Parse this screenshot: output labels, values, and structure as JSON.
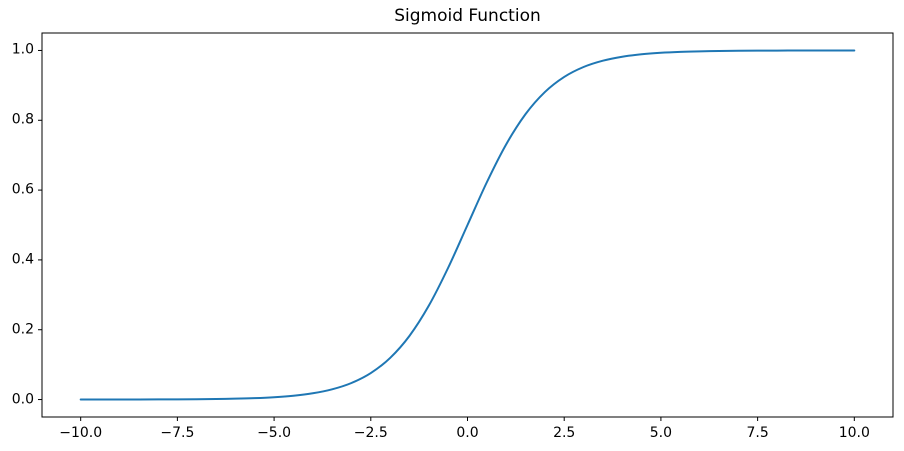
{
  "chart_data": {
    "type": "line",
    "title": "Sigmoid Function",
    "xlabel": "",
    "ylabel": "",
    "grid": false,
    "legend": null,
    "xlim": [
      -11,
      11
    ],
    "ylim": [
      -0.05,
      1.05
    ],
    "xticks": [
      -10.0,
      -7.5,
      -5.0,
      -2.5,
      0.0,
      2.5,
      5.0,
      7.5,
      10.0
    ],
    "xtick_labels": [
      "−10.0",
      "−7.5",
      "−5.0",
      "−2.5",
      "0.0",
      "2.5",
      "5.0",
      "7.5",
      "10.0"
    ],
    "yticks": [
      0.0,
      0.2,
      0.4,
      0.6,
      0.8,
      1.0
    ],
    "ytick_labels": [
      "0.0",
      "0.2",
      "0.4",
      "0.6",
      "0.8",
      "1.0"
    ],
    "x": [
      -10,
      -9.5,
      -9,
      -8.5,
      -8,
      -7.5,
      -7,
      -6.5,
      -6,
      -5.5,
      -5,
      -4.5,
      -4,
      -3.5,
      -3,
      -2.5,
      -2,
      -1.5,
      -1,
      -0.5,
      0,
      0.5,
      1,
      1.5,
      2,
      2.5,
      3,
      3.5,
      4,
      4.5,
      5,
      5.5,
      6,
      6.5,
      7,
      7.5,
      8,
      8.5,
      9,
      9.5,
      10
    ],
    "series": [
      {
        "name": "sigmoid",
        "color": "#1f77b4",
        "values": [
          4.5e-05,
          7.5e-05,
          0.000123,
          0.000203,
          0.000335,
          0.000553,
          0.000911,
          0.001503,
          0.002473,
          0.00407,
          0.006693,
          0.010987,
          0.017986,
          0.029312,
          0.047426,
          0.075858,
          0.119203,
          0.182426,
          0.268941,
          0.377541,
          0.5,
          0.622459,
          0.731059,
          0.817574,
          0.880797,
          0.924142,
          0.952574,
          0.970688,
          0.982014,
          0.989013,
          0.993307,
          0.99593,
          0.997527,
          0.998497,
          0.999089,
          0.999447,
          0.999665,
          0.999797,
          0.999877,
          0.999925,
          0.999955
        ]
      }
    ],
    "colors": {
      "line": "#1f77b4",
      "spine": "#000000",
      "background": "#ffffff",
      "text": "#000000"
    }
  }
}
